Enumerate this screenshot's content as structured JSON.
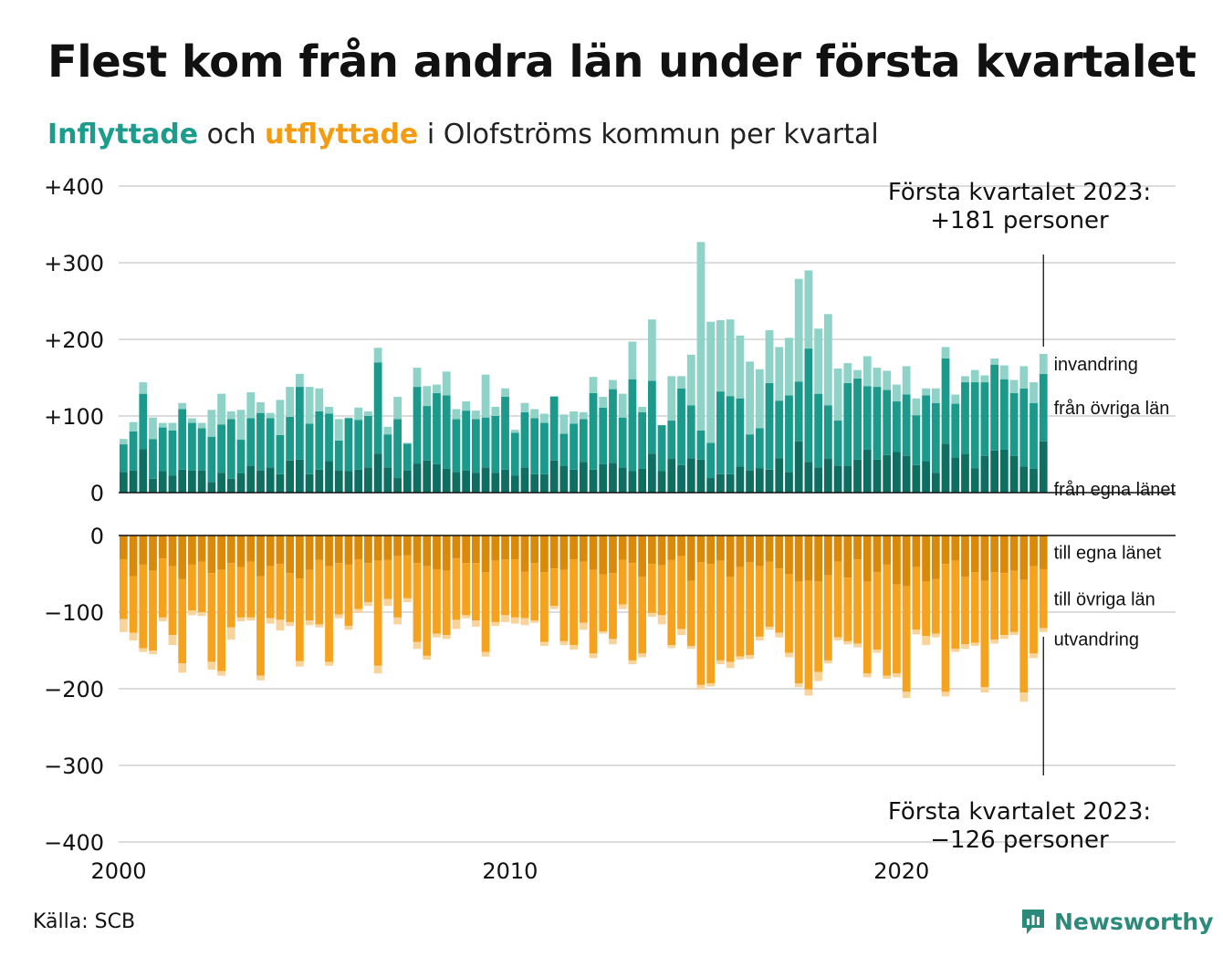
{
  "title": "Flest kom från andra län under första kvartalet",
  "subtitle": {
    "in_word": "Inflyttade",
    "mid_word": "och",
    "out_word": "utflyttade",
    "rest": "i Olofströms kommun per kvartal"
  },
  "annotation_top": {
    "line1": "Första kvartalet 2023:",
    "line2": "+181 personer"
  },
  "annotation_bottom": {
    "line1": "Första kvartalet 2023:",
    "line2": "−126 personer"
  },
  "source": "Källa: SCB",
  "brand": "Newsworthy",
  "chart_data": {
    "type": "bar",
    "stacked": true,
    "x_start": "2000 Q1",
    "x_end": "2023 Q1",
    "x_ticks": [
      "2000",
      "2010",
      "2020"
    ],
    "x_tick_years": [
      2000,
      2010,
      2020
    ],
    "xlim_years": [
      2000,
      2027
    ],
    "upper": {
      "ylim": [
        0,
        400
      ],
      "y_ticks": [
        0,
        100,
        200,
        300,
        400
      ],
      "y_tick_labels": [
        "0",
        "+100",
        "+200",
        "+300",
        "+400"
      ],
      "series": [
        {
          "name": "från egna länet",
          "color": "#0f6e62",
          "values": [
            27,
            29,
            57,
            18,
            28,
            22,
            30,
            29,
            29,
            14,
            26,
            18,
            25,
            35,
            29,
            33,
            24,
            42,
            43,
            24,
            30,
            41,
            29,
            28,
            30,
            33,
            51,
            33,
            19,
            29,
            38,
            42,
            37,
            31,
            27,
            29,
            26,
            33,
            26,
            30,
            22,
            33,
            24,
            24,
            42,
            35,
            30,
            40,
            30,
            37,
            39,
            33,
            28,
            31,
            51,
            28,
            44,
            36,
            45,
            43,
            19,
            24,
            24,
            34,
            29,
            32,
            30,
            45,
            27,
            67,
            40,
            33,
            44,
            35,
            35,
            43,
            56,
            43,
            49,
            53,
            48,
            36,
            41,
            26,
            64,
            46,
            50,
            32,
            48,
            55,
            56,
            48,
            34,
            31,
            67
          ]
        },
        {
          "name": "från övriga län",
          "color": "#1b9a8b",
          "values": [
            36,
            51,
            72,
            52,
            57,
            59,
            79,
            62,
            55,
            59,
            63,
            78,
            44,
            62,
            75,
            64,
            51,
            57,
            95,
            66,
            76,
            62,
            39,
            69,
            65,
            67,
            119,
            43,
            77,
            35,
            100,
            71,
            93,
            96,
            69,
            78,
            70,
            65,
            74,
            95,
            56,
            72,
            73,
            67,
            83,
            42,
            60,
            56,
            100,
            74,
            96,
            65,
            120,
            74,
            95,
            60,
            50,
            100,
            69,
            38,
            46,
            108,
            102,
            89,
            47,
            52,
            113,
            75,
            100,
            78,
            148,
            96,
            70,
            59,
            108,
            106,
            83,
            95,
            85,
            66,
            80,
            65,
            86,
            91,
            111,
            70,
            94,
            112,
            96,
            112,
            92,
            82,
            102,
            86,
            88
          ]
        },
        {
          "name": "invandring",
          "color": "#8fd3c8",
          "values": [
            7,
            12,
            15,
            28,
            6,
            10,
            8,
            6,
            7,
            35,
            40,
            10,
            39,
            34,
            14,
            7,
            46,
            39,
            17,
            48,
            30,
            9,
            28,
            1,
            16,
            6,
            19,
            10,
            29,
            1,
            25,
            26,
            11,
            31,
            13,
            12,
            11,
            56,
            12,
            11,
            4,
            12,
            12,
            12,
            1,
            25,
            16,
            9,
            21,
            14,
            12,
            31,
            49,
            7,
            80,
            0,
            58,
            16,
            66,
            246,
            158,
            93,
            100,
            82,
            95,
            77,
            69,
            70,
            75,
            134,
            102,
            85,
            119,
            68,
            26,
            11,
            39,
            25,
            25,
            22,
            37,
            22,
            9,
            19,
            15,
            12,
            8,
            16,
            9,
            8,
            18,
            17,
            29,
            27,
            26
          ]
        }
      ]
    },
    "lower": {
      "ylim": [
        -400,
        0
      ],
      "y_ticks": [
        0,
        -100,
        -200,
        -300,
        -400
      ],
      "y_tick_labels": [
        "0",
        "−100",
        "−200",
        "−300",
        "−400"
      ],
      "series": [
        {
          "name": "till egna länet",
          "color": "#d98a0a",
          "values": [
            -31,
            -53,
            -38,
            -46,
            -30,
            -40,
            -57,
            -38,
            -34,
            -49,
            -45,
            -36,
            -41,
            -34,
            -53,
            -40,
            -37,
            -49,
            -56,
            -45,
            -32,
            -40,
            -36,
            -38,
            -31,
            -36,
            -33,
            -32,
            -27,
            -26,
            -36,
            -40,
            -44,
            -46,
            -30,
            -36,
            -36,
            -48,
            -33,
            -31,
            -31,
            -47,
            -36,
            -48,
            -43,
            -45,
            -31,
            -34,
            -45,
            -51,
            -49,
            -32,
            -36,
            -54,
            -37,
            -39,
            -32,
            -27,
            -59,
            -35,
            -37,
            -33,
            -54,
            -41,
            -35,
            -40,
            -34,
            -43,
            -50,
            -60,
            -59,
            -60,
            -52,
            -34,
            -55,
            -31,
            -60,
            -48,
            -38,
            -64,
            -66,
            -41,
            -60,
            -57,
            -37,
            -33,
            -54,
            -48,
            -59,
            -48,
            -49,
            -46,
            -58,
            -40,
            -44
          ]
        },
        {
          "name": "till övriga län",
          "color": "#f5a21e",
          "values": [
            -78,
            -74,
            -109,
            -104,
            -77,
            -90,
            -110,
            -60,
            -66,
            -116,
            -132,
            -84,
            -66,
            -73,
            -130,
            -68,
            -73,
            -64,
            -108,
            -66,
            -84,
            -125,
            -67,
            -80,
            -65,
            -51,
            -137,
            -51,
            -80,
            -56,
            -103,
            -117,
            -84,
            -84,
            -80,
            -68,
            -75,
            -104,
            -80,
            -73,
            -76,
            -61,
            -75,
            -91,
            -49,
            -93,
            -112,
            -80,
            -109,
            -74,
            -86,
            -58,
            -127,
            -100,
            -64,
            -65,
            -111,
            -95,
            -85,
            -160,
            -156,
            -130,
            -111,
            -117,
            -121,
            -92,
            -85,
            -84,
            -103,
            -133,
            -142,
            -118,
            -111,
            -99,
            -83,
            -110,
            -120,
            -101,
            -145,
            -116,
            -138,
            -82,
            -71,
            -71,
            -167,
            -115,
            -88,
            -92,
            -139,
            -88,
            -81,
            -80,
            -147,
            -114,
            -77
          ]
        },
        {
          "name": "utvandring",
          "color": "#f8d49b",
          "values": [
            -17,
            -10,
            -5,
            -5,
            -5,
            -13,
            -12,
            -6,
            -5,
            -10,
            -6,
            -16,
            -5,
            -4,
            -6,
            -7,
            -14,
            -5,
            -7,
            -6,
            -4,
            -5,
            -5,
            -5,
            -5,
            -5,
            -10,
            -9,
            -9,
            -5,
            -9,
            -5,
            -5,
            -5,
            -12,
            -4,
            -8,
            -6,
            -5,
            -9,
            -8,
            -9,
            -3,
            -5,
            -4,
            -5,
            -6,
            -9,
            -6,
            -3,
            -7,
            -6,
            -5,
            -5,
            -5,
            -12,
            -4,
            -8,
            -4,
            -6,
            -4,
            -5,
            -8,
            -4,
            -5,
            -5,
            -4,
            -6,
            -6,
            -5,
            -8,
            -12,
            -4,
            -4,
            -4,
            -5,
            -5,
            -4,
            -4,
            -5,
            -8,
            -6,
            -12,
            -5,
            -6,
            -4,
            -6,
            -4,
            -7,
            -5,
            -5,
            -4,
            -12,
            -6,
            -5
          ]
        }
      ]
    },
    "grid": true,
    "legend": "labels at right end of bars"
  }
}
